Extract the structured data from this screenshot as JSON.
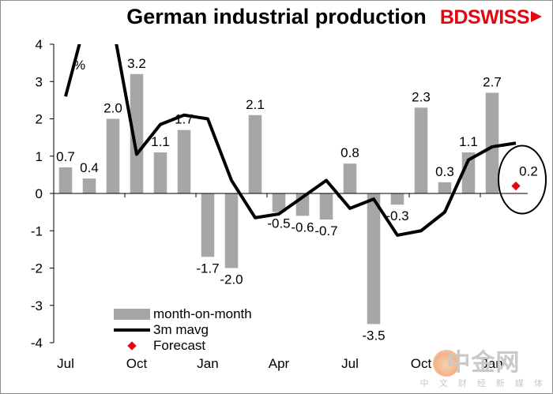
{
  "title": "German industrial production",
  "brand": {
    "left": "BD",
    "right": "SWISS"
  },
  "unit_label": "%",
  "legend": {
    "bar": "month-on-month",
    "line": "3m mavg",
    "dot": "Forecast"
  },
  "watermark": {
    "main": "中金网",
    "sub": "中 文 财 经 新 媒 体"
  },
  "colors": {
    "bars": "#a6a6a6",
    "line": "#000000",
    "forecast": "#e30613"
  },
  "chart_data": {
    "type": "bar",
    "ylim": [
      -4,
      4
    ],
    "yticks": [
      4,
      3,
      2,
      1,
      0,
      -1,
      -2,
      -3,
      -4
    ],
    "x_tick_labels": [
      {
        "label": "Jul",
        "index": 0
      },
      {
        "label": "Oct",
        "index": 3
      },
      {
        "label": "Jan",
        "index": 6
      },
      {
        "label": "Apr",
        "index": 9
      },
      {
        "label": "Jul",
        "index": 12
      },
      {
        "label": "Oct",
        "index": 15
      },
      {
        "label": "Jan",
        "index": 18
      }
    ],
    "series": [
      {
        "name": "month-on-month",
        "type": "bar",
        "values": [
          0.7,
          0.4,
          2.0,
          3.2,
          1.1,
          1.7,
          -1.7,
          -2.0,
          2.1,
          -0.5,
          -0.6,
          -0.7,
          0.8,
          -3.5,
          -0.3,
          2.3,
          0.3,
          1.1,
          2.7
        ],
        "labels": [
          "0.7",
          "0.4",
          "2.0",
          "3.2",
          "1.1",
          "1.7",
          "-1.7",
          "-2.0",
          "2.1",
          "-0.5",
          "-0.6",
          "-0.7",
          "0.8",
          "-3.5",
          "-0.3",
          "2.3",
          "0.3",
          "1.1",
          "2.7"
        ]
      },
      {
        "name": "3m mavg",
        "type": "line",
        "values": [
          2.6,
          5.0,
          4.5,
          1.05,
          1.85,
          2.1,
          2.0,
          0.35,
          -0.65,
          -0.55,
          -0.1,
          0.35,
          -0.4,
          -0.15,
          -1.12,
          -1.0,
          -0.5,
          0.9,
          1.25,
          1.35
        ]
      },
      {
        "name": "Forecast",
        "type": "point",
        "index": 19,
        "value": 0.2,
        "label": "0.2"
      }
    ]
  }
}
